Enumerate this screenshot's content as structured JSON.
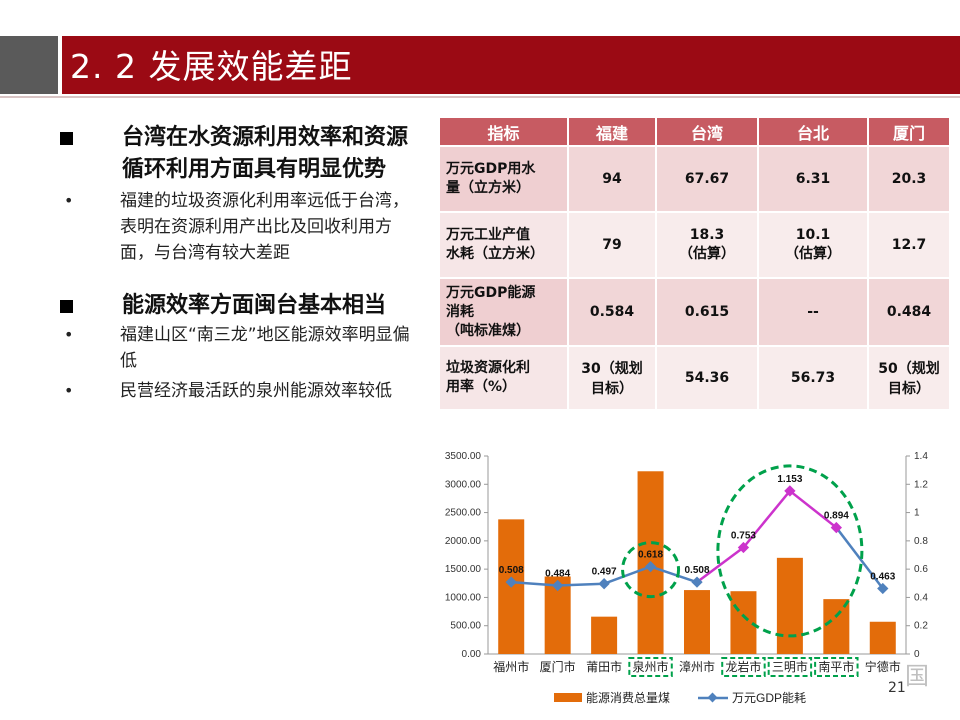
{
  "header": {
    "title": "2. 2  发展效能差距"
  },
  "left": {
    "point1": {
      "title": "台湾在水资源利用效率和资源循环利用方面具有明显优势",
      "subs": [
        "福建的垃圾资源化利用率远低于台湾，表明在资源利用产出比及回收利用方面，与台湾有较大差距"
      ]
    },
    "point2": {
      "title": "能源效率方面闽台基本相当",
      "subs": [
        "福建山区“南三龙”地区能源效率明显偏低",
        "民营经济最活跃的泉州能源效率较低"
      ]
    }
  },
  "table": {
    "headers": [
      "指标",
      "福建",
      "台湾",
      "台北",
      "厦门"
    ],
    "rows": [
      {
        "label": [
          "万元GDP用水",
          "量（立方米）"
        ],
        "cells": [
          [
            "94"
          ],
          [
            "67.67"
          ],
          [
            "6.31"
          ],
          [
            "20.3"
          ]
        ]
      },
      {
        "label": [
          "万元工业产值",
          "水耗（立方米）"
        ],
        "cells": [
          [
            "79"
          ],
          [
            "18.3",
            "（估算）"
          ],
          [
            "10.1",
            "（估算）"
          ],
          [
            "12.7"
          ]
        ]
      },
      {
        "label": [
          "万元GDP能源",
          "消耗",
          "（吨标准煤）"
        ],
        "cells": [
          [
            "0.584"
          ],
          [
            "0.615"
          ],
          [
            "--"
          ],
          [
            "0.484"
          ]
        ]
      },
      {
        "label": [
          "垃圾资源化利",
          "用率（%）"
        ],
        "cells": [
          [
            "30（规划",
            "目标）"
          ],
          [
            "54.36"
          ],
          [
            "56.73"
          ],
          [
            "50（规划",
            "目标）"
          ]
        ]
      }
    ],
    "colors": {
      "header": "#c75b62",
      "cell": "#f1d6d7"
    }
  },
  "chart_data": {
    "type": "bar",
    "categories": [
      "福州市",
      "厦门市",
      "莆田市",
      "泉州市",
      "漳州市",
      "龙岩市",
      "三明市",
      "南平市",
      "宁德市"
    ],
    "series": [
      {
        "name": "能源消费总量煤",
        "type": "bar",
        "axis": "left",
        "values": [
          2380,
          1370,
          660,
          3230,
          1130,
          1110,
          1700,
          970,
          570
        ],
        "color": "#e36c0a"
      },
      {
        "name": "万元GDP能耗",
        "type": "line",
        "axis": "right",
        "values": [
          0.508,
          0.484,
          0.497,
          0.618,
          0.508,
          0.753,
          1.153,
          0.894,
          0.463
        ],
        "labels": [
          "0.508",
          "0.484",
          "0.497",
          "0.618",
          "0.508",
          "0.753",
          "1.153",
          "0.894",
          "0.463"
        ],
        "color": "#4f81bd",
        "highlight_color": "#cc33cc"
      }
    ],
    "yleft": {
      "min": 0,
      "max": 3500,
      "ticks": [
        "0.00",
        "500.00",
        "1000.00",
        "1500.00",
        "2000.00",
        "2500.00",
        "3000.00",
        "3500.00"
      ]
    },
    "yright": {
      "min": 0,
      "max": 1.4,
      "ticks": [
        "0",
        "0.2",
        "0.4",
        "0.6",
        "0.8",
        "1",
        "1.2",
        "1.4"
      ]
    },
    "legend": "bottom",
    "highlight_categories": [
      "泉州市",
      "龙岩市",
      "三明市",
      "南平市"
    ],
    "circle_color": "#00a14b"
  },
  "footer": {
    "page": "21",
    "watermark": "国"
  }
}
